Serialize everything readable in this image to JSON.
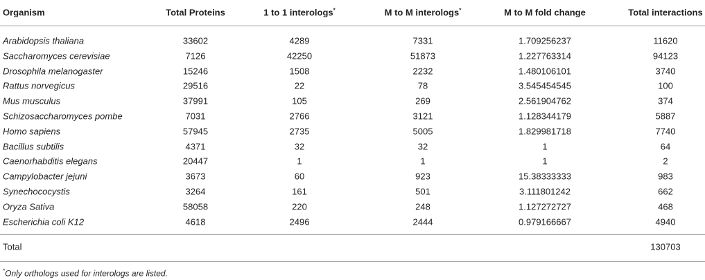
{
  "table": {
    "headers": [
      "Organism",
      "Total Proteins",
      "1 to 1 interologs",
      "M to M interologs",
      "M to M fold change",
      "Total interactions"
    ],
    "rows": [
      [
        "Arabidopsis thaliana",
        "33602",
        "4289",
        "7331",
        "1.709256237",
        "11620"
      ],
      [
        "Saccharomyces cerevisiae",
        "7126",
        "42250",
        "51873",
        "1.227763314",
        "94123"
      ],
      [
        "Drosophila melanogaster",
        "15246",
        "1508",
        "2232",
        "1.480106101",
        "3740"
      ],
      [
        "Rattus norvegicus",
        "29516",
        "22",
        "78",
        "3.545454545",
        "100"
      ],
      [
        "Mus musculus",
        "37991",
        "105",
        "269",
        "2.561904762",
        "374"
      ],
      [
        "Schizosaccharomyces pombe",
        "7031",
        "2766",
        "3121",
        "1.128344179",
        "5887"
      ],
      [
        "Homo sapiens",
        "57945",
        "2735",
        "5005",
        "1.829981718",
        "7740"
      ],
      [
        "Bacillus subtilis",
        "4371",
        "32",
        "32",
        "1",
        "64"
      ],
      [
        "Caenorhabditis elegans",
        "20447",
        "1",
        "1",
        "1",
        "2"
      ],
      [
        "Campylobacter jejuni",
        "3673",
        "60",
        "923",
        "15.38333333",
        "983"
      ],
      [
        "Synechococystis",
        "3264",
        "161",
        "501",
        "3.111801242",
        "662"
      ],
      [
        "Oryza Sativa",
        "58058",
        "220",
        "248",
        "1.127272727",
        "468"
      ],
      [
        "Escherichia coli K12",
        "4618",
        "2496",
        "2444",
        "0.979166667",
        "4940"
      ]
    ],
    "total": {
      "label": "Total",
      "value": "130703"
    }
  },
  "footnote": {
    "mark": "*",
    "text": "Only orthologs used for interologs are listed."
  }
}
